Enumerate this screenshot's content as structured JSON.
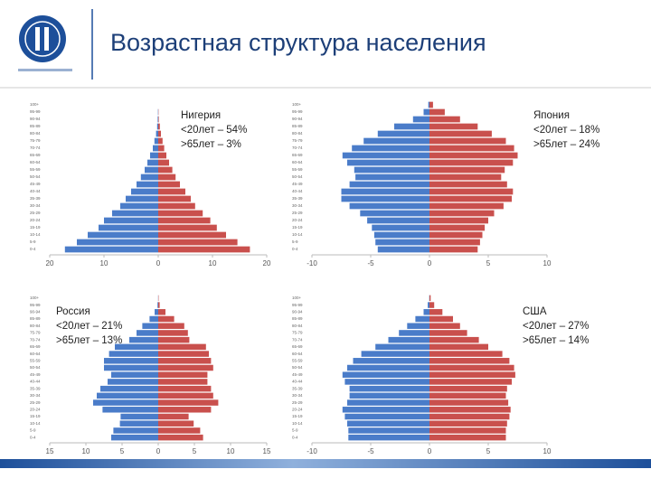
{
  "title": "Возрастная структура населения",
  "chart_data": [
    {
      "type": "pyramid",
      "label": "Нигерия",
      "notes": [
        "<20лет – 54%",
        ">65лет – 3%"
      ],
      "categories": [
        "0-4",
        "5-9",
        "10-14",
        "15-19",
        "20-24",
        "25-29",
        "30-34",
        "35-39",
        "40-44",
        "45-49",
        "50-54",
        "55-59",
        "60-64",
        "65-69",
        "70-74",
        "75-79",
        "80-84",
        "85-89",
        "90-94",
        "95-99",
        "100+"
      ],
      "series": [
        {
          "color": "#4a7cc9",
          "values": [
            -17.2,
            -15,
            -13,
            -11,
            -10,
            -8.5,
            -7,
            -6,
            -5,
            -4,
            -3.2,
            -2.5,
            -2,
            -1.5,
            -1,
            -0.7,
            -0.4,
            -0.2,
            -0.1,
            -0.05,
            0
          ]
        },
        {
          "color": "#c9504d",
          "values": [
            16.9,
            14.6,
            12.5,
            10.8,
            9.6,
            8.2,
            6.8,
            6,
            5,
            4,
            3.2,
            2.6,
            2,
            1.5,
            1.1,
            0.8,
            0.5,
            0.3,
            0.1,
            0.05,
            0
          ]
        }
      ],
      "xlim": [
        -20,
        20
      ],
      "xticks": [
        {
          "value": -20,
          "label": "20"
        },
        {
          "value": -10,
          "label": "10"
        },
        0,
        10,
        20
      ]
    },
    {
      "type": "pyramid",
      "label": "Япония",
      "notes": [
        "<20лет – 18%",
        ">65лет – 24%"
      ],
      "categories": [
        "0-4",
        "5-9",
        "10-14",
        "15-19",
        "20-24",
        "25-29",
        "30-34",
        "35-39",
        "40-44",
        "45-49",
        "50-54",
        "55-59",
        "60-64",
        "65-69",
        "70-74",
        "75-79",
        "80-84",
        "85-89",
        "90-94",
        "95-99",
        "100+"
      ],
      "series": [
        {
          "color": "#4a7cc9",
          "values": [
            -4.4,
            -4.6,
            -4.7,
            -4.9,
            -5.3,
            -5.9,
            -6.8,
            -7.5,
            -7.5,
            -6.8,
            -6.3,
            -6.4,
            -7.0,
            -7.4,
            -6.6,
            -5.6,
            -4.4,
            -3.0,
            -1.4,
            -0.5,
            -0.1
          ]
        },
        {
          "color": "#c9504d",
          "values": [
            4.1,
            4.3,
            4.5,
            4.7,
            5.0,
            5.5,
            6.3,
            7.0,
            7.1,
            6.6,
            6.1,
            6.4,
            7.1,
            7.5,
            7.2,
            6.5,
            5.3,
            4.1,
            2.6,
            1.3,
            0.3
          ]
        }
      ],
      "xlim": [
        -10,
        10
      ],
      "xticks": [
        -10,
        -5,
        0,
        5,
        10
      ]
    },
    {
      "type": "pyramid",
      "label": "Россия",
      "notes": [
        "<20лет – 21%",
        ">65лет – 13%"
      ],
      "categories": [
        "0-4",
        "5-9",
        "10-14",
        "15-19",
        "20-24",
        "25-29",
        "30-34",
        "35-39",
        "40-44",
        "45-49",
        "50-54",
        "55-59",
        "60-64",
        "65-69",
        "70-74",
        "75-79",
        "80-84",
        "85-89",
        "90-94",
        "95-99",
        "100+"
      ],
      "series": [
        {
          "color": "#4a7cc9",
          "values": [
            -6.5,
            -6.2,
            -5.3,
            -5.2,
            -7.7,
            -9.0,
            -8.5,
            -8.0,
            -7.0,
            -6.5,
            -7.5,
            -7.5,
            -6.8,
            -6.0,
            -4.0,
            -3.0,
            -2.2,
            -1.2,
            -0.5,
            -0.1,
            -0.02
          ]
        },
        {
          "color": "#c9504d",
          "values": [
            6.2,
            5.8,
            4.9,
            4.2,
            7.3,
            8.3,
            7.6,
            7.3,
            6.8,
            6.8,
            7.6,
            7.3,
            7.0,
            6.6,
            4.3,
            4.1,
            3.6,
            2.2,
            1.0,
            0.2,
            0.05
          ]
        }
      ],
      "xlim": [
        -15,
        15
      ],
      "xticks": [
        {
          "value": -15,
          "label": "15"
        },
        {
          "value": -10,
          "label": "10"
        },
        {
          "value": -5,
          "label": "5"
        },
        0,
        5,
        10,
        15
      ]
    },
    {
      "type": "pyramid",
      "label": "США",
      "notes": [
        "<20лет – 27%",
        ">65лет – 14%"
      ],
      "categories": [
        "0-4",
        "5-9",
        "10-14",
        "15-19",
        "20-24",
        "25-29",
        "30-34",
        "35-39",
        "40-44",
        "45-49",
        "50-54",
        "55-59",
        "60-64",
        "65-69",
        "70-74",
        "75-79",
        "80-84",
        "85-89",
        "90-94",
        "95-99",
        "100+"
      ],
      "series": [
        {
          "color": "#4a7cc9",
          "values": [
            -6.9,
            -6.9,
            -7.0,
            -7.2,
            -7.4,
            -7.0,
            -6.8,
            -6.8,
            -7.2,
            -7.4,
            -7.0,
            -6.5,
            -5.8,
            -4.6,
            -3.5,
            -2.6,
            -1.9,
            -1.2,
            -0.5,
            -0.15,
            -0.02
          ]
        },
        {
          "color": "#c9504d",
          "values": [
            6.5,
            6.5,
            6.6,
            6.8,
            6.9,
            6.7,
            6.5,
            6.6,
            7.0,
            7.3,
            7.2,
            6.8,
            6.2,
            5.0,
            4.2,
            3.2,
            2.6,
            2.0,
            1.1,
            0.4,
            0.1
          ]
        }
      ],
      "xlim": [
        -10,
        10
      ],
      "xticks": [
        -10,
        -5,
        0,
        5,
        10
      ]
    }
  ]
}
